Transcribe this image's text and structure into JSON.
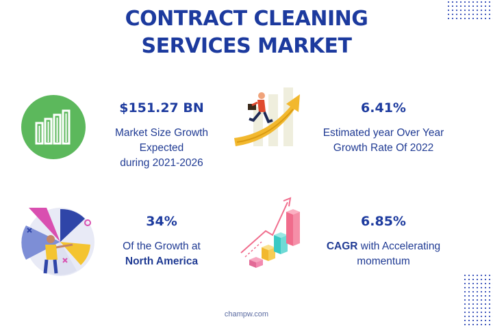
{
  "title": {
    "line1": "CONTRACT CLEANING",
    "line2": "SERVICES MARKET"
  },
  "stats": [
    {
      "value": "$151.27 BN",
      "desc_lines": [
        "Market Size Growth",
        "Expected",
        "during 2021-2026"
      ],
      "icon": "bar-chart-circle-icon"
    },
    {
      "value": "6.41%",
      "desc_lines": [
        "Estimated year Over Year",
        "Growth Rate Of 2022"
      ],
      "icon": "businessman-growth-arrow-icon"
    },
    {
      "value": "34%",
      "desc_line1": "Of the Growth at",
      "desc_bold": "North America",
      "icon": "pie-chart-person-icon"
    },
    {
      "value": "6.85%",
      "desc_bold_prefix": "CAGR",
      "desc_rest": " with Accelerating",
      "desc_line2": "momentum",
      "icon": "3d-bar-growth-icon"
    }
  ],
  "footer": "champw.com",
  "colors": {
    "title": "#1c3a9e",
    "icon_green": "#5cb85c",
    "arrow_yellow": "#f2b82e",
    "pie_blue": "#2f45a8",
    "pie_pink": "#d94fb0",
    "bar_pink": "#f06c8c",
    "bar_teal": "#39c9c4"
  }
}
